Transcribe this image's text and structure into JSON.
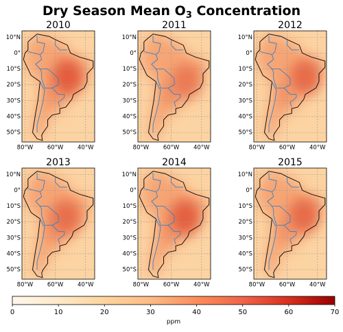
{
  "title_parts": [
    "Dry Season Mean O",
    "3",
    " Concentration"
  ],
  "panels": [
    "2010",
    "2011",
    "2012",
    "2013",
    "2014",
    "2015"
  ],
  "lat_ticks": [
    {
      "value": 10,
      "label": "10°N"
    },
    {
      "value": 0,
      "label": "0°"
    },
    {
      "value": -10,
      "label": "10°S"
    },
    {
      "value": -20,
      "label": "20°S"
    },
    {
      "value": -30,
      "label": "30°S"
    },
    {
      "value": -40,
      "label": "40°S"
    },
    {
      "value": -50,
      "label": "50°S"
    }
  ],
  "lon_ticks": [
    {
      "value": -80,
      "label": "80°W"
    },
    {
      "value": -60,
      "label": "60°W"
    },
    {
      "value": -40,
      "label": "40°W"
    }
  ],
  "colorbar": {
    "range": [
      0,
      70
    ],
    "ticks": [
      0,
      10,
      20,
      30,
      40,
      50,
      60,
      70
    ],
    "label": "ppm",
    "colors": [
      "#fff7ec",
      "#fee8c8",
      "#fdd49e",
      "#fdbb84",
      "#fc8d59",
      "#ef6548",
      "#d7301f",
      "#990000"
    ]
  }
}
